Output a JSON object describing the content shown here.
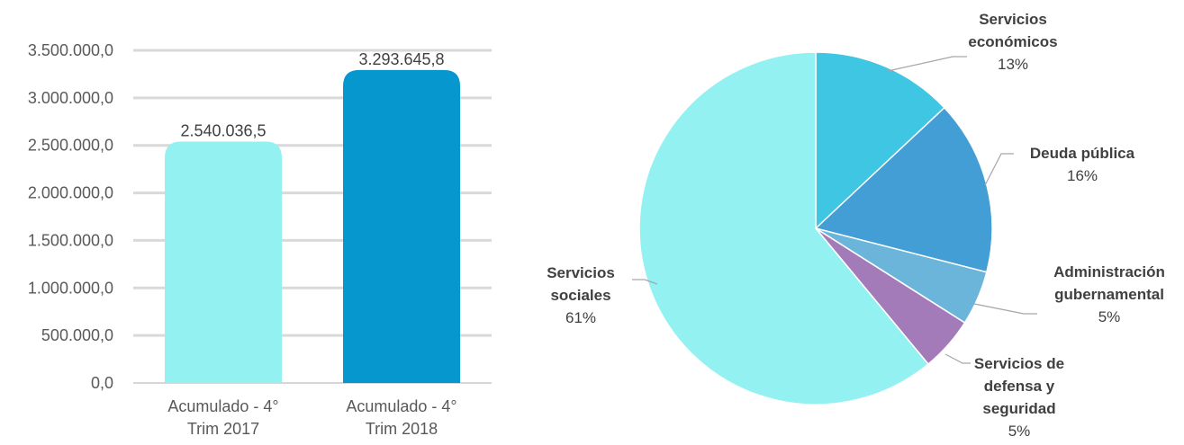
{
  "chart_data": [
    {
      "type": "bar",
      "categories": [
        [
          "Acumulado - 4°",
          "Trim 2017"
        ],
        [
          "Acumulado - 4°",
          "Trim 2018"
        ]
      ],
      "values": [
        2540036.5,
        3293645.8
      ],
      "value_labels": [
        "2.540.036,5",
        "3.293.645,8"
      ],
      "colors": [
        "#93F1F1",
        "#0797CF"
      ],
      "ylim": [
        0,
        3500000
      ],
      "yticks": [
        0,
        500000,
        1000000,
        1500000,
        2000000,
        2500000,
        3000000,
        3500000
      ],
      "ytick_labels": [
        "0,0",
        "500.000,0",
        "1.000.000,0",
        "1.500.000,0",
        "2.000.000,0",
        "2.500.000,0",
        "3.000.000,0",
        "3.500.000,0"
      ],
      "grid": true
    },
    {
      "type": "pie",
      "slices": [
        {
          "name_lines": [
            "Servicios",
            "económicos"
          ],
          "percent_label": "13%",
          "value": 13,
          "color": "#3EC6E2"
        },
        {
          "name_lines": [
            "Deuda pública"
          ],
          "percent_label": "16%",
          "value": 16,
          "color": "#439ED6"
        },
        {
          "name_lines": [
            "Administración",
            "gubernamental"
          ],
          "percent_label": "5%",
          "value": 5,
          "color": "#6BB5DA"
        },
        {
          "name_lines": [
            "Servicios de",
            "defensa y",
            "seguridad"
          ],
          "percent_label": "5%",
          "value": 5,
          "color": "#A47BB9"
        },
        {
          "name_lines": [
            "Servicios",
            "sociales"
          ],
          "percent_label": "61%",
          "value": 61,
          "color": "#93F1F1"
        }
      ]
    }
  ]
}
